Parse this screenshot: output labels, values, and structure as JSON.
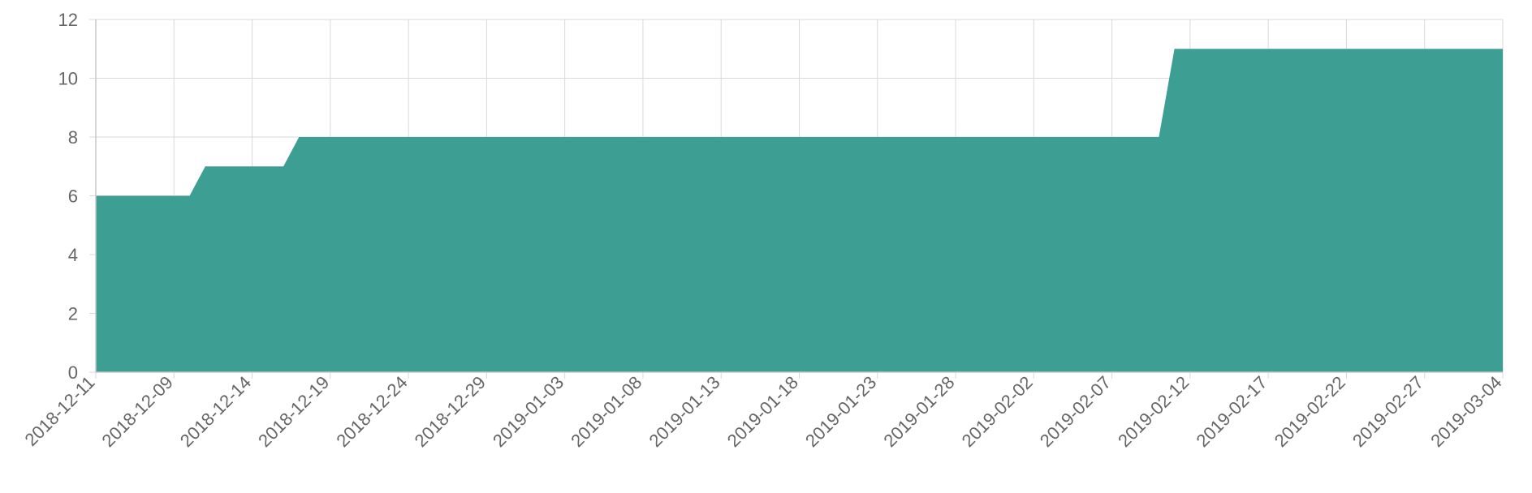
{
  "chart_data": {
    "type": "area",
    "title": "",
    "xlabel": "",
    "ylabel": "",
    "ylim": [
      0,
      12
    ],
    "yticks": [
      0,
      2,
      4,
      6,
      8,
      10,
      12
    ],
    "grid": true,
    "legend": "none",
    "fill_color": "#3d9e93",
    "x_tick_labels": [
      "2018-12-11",
      "2018-12-09",
      "2018-12-14",
      "2018-12-19",
      "2018-12-24",
      "2018-12-29",
      "2019-01-03",
      "2019-01-08",
      "2019-01-13",
      "2019-01-18",
      "2019-01-23",
      "2019-01-28",
      "2019-02-02",
      "2019-02-07",
      "2019-02-12",
      "2019-02-17",
      "2019-02-22",
      "2019-02-27",
      "2019-03-04"
    ],
    "series": [
      {
        "points": [
          {
            "x": "2018-12-04",
            "y": 6
          },
          {
            "x": "2018-12-10",
            "y": 6
          },
          {
            "x": "2018-12-11",
            "y": 7
          },
          {
            "x": "2018-12-16",
            "y": 7
          },
          {
            "x": "2018-12-17",
            "y": 8
          },
          {
            "x": "2019-02-10",
            "y": 8
          },
          {
            "x": "2019-02-11",
            "y": 11
          },
          {
            "x": "2019-03-04",
            "y": 11
          }
        ]
      }
    ]
  }
}
